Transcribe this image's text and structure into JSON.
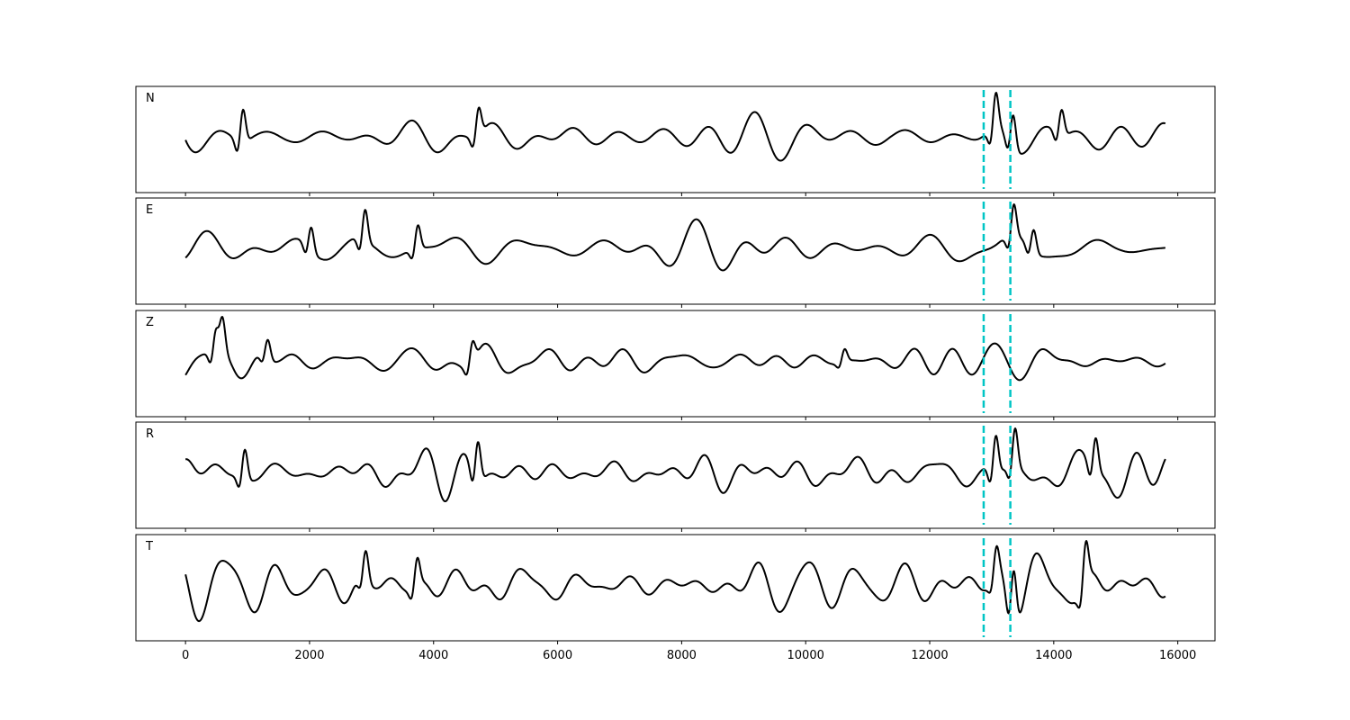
{
  "chart_data": {
    "type": "line",
    "description_units": "samples",
    "xlim": [
      -800,
      16600
    ],
    "xticks": [
      0,
      2000,
      4000,
      6000,
      8000,
      10000,
      12000,
      14000,
      16000
    ],
    "x_end": 15800,
    "grid": false,
    "line_color": "#000000",
    "marker_color": "#00c5c5",
    "vertical_markers": [
      12870,
      13300
    ],
    "series": [
      {
        "name": "N",
        "seed": 11,
        "events": [
          [
            900,
            0.9
          ],
          [
            4700,
            0.75
          ],
          [
            13040,
            1.0
          ],
          [
            13320,
            0.9
          ],
          [
            14100,
            0.7
          ]
        ]
      },
      {
        "name": "E",
        "seed": 23,
        "events": [
          [
            2000,
            0.75
          ],
          [
            2870,
            1.0
          ],
          [
            3720,
            0.75
          ],
          [
            13330,
            1.0
          ],
          [
            13650,
            0.7
          ]
        ]
      },
      {
        "name": "Z",
        "seed": 37,
        "events": [
          [
            470,
            1.0
          ],
          [
            570,
            1.0
          ],
          [
            1300,
            0.6
          ],
          [
            4600,
            0.65
          ],
          [
            10600,
            0.4
          ]
        ]
      },
      {
        "name": "R",
        "seed": 51,
        "events": [
          [
            930,
            0.8
          ],
          [
            4690,
            1.0
          ],
          [
            13040,
            1.0
          ],
          [
            13350,
            1.0
          ],
          [
            14650,
            0.9
          ]
        ]
      },
      {
        "name": "T",
        "seed": 67,
        "events": [
          [
            2880,
            0.6
          ],
          [
            3710,
            0.55
          ],
          [
            13330,
            1.0
          ],
          [
            14490,
            0.8
          ],
          [
            13050,
            0.55
          ]
        ]
      }
    ]
  }
}
